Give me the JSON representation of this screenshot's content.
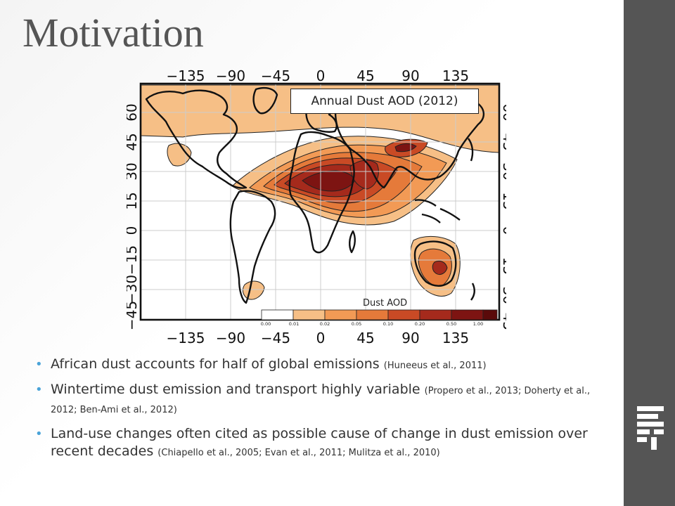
{
  "slide": {
    "title": "Motivation"
  },
  "figure": {
    "map_title": "Annual Dust AOD (2012)",
    "lon_ticks": [
      "−135",
      "−90",
      "−45",
      "0",
      "45",
      "90",
      "135"
    ],
    "lat_ticks": [
      "60",
      "45",
      "30",
      "15",
      "0",
      "−15",
      "−30",
      "−45"
    ],
    "colorbar_title": "Dust AOD",
    "colorbar_ticks": [
      "0.00",
      "0.01",
      "0.02",
      "0.05",
      "0.10",
      "0.20",
      "0.50",
      "1.00"
    ],
    "colors": {
      "level_1": "#ffffff",
      "level_2": "#f6bf86",
      "level_3": "#f29a55",
      "level_4": "#e57a3a",
      "level_5": "#c94a25",
      "level_6": "#a52a1c",
      "level_7": "#7d1412",
      "level_8": "#5a0a0a"
    }
  },
  "bullets": [
    {
      "text": "African dust accounts for half of global emissions",
      "ref": "(Huneeus et al., 2011)"
    },
    {
      "text": "Wintertime dust emission and transport highly variable",
      "ref": "(Propero et al., 2013; Doherty et al., 2012; Ben-Ami et al., 2012)"
    },
    {
      "text": "Land-use changes often cited as possible cause of change in dust emission over recent decades",
      "ref": "(Chiapello et al., 2005; Evan et al., 2011; Mulitza et al., 2010)"
    }
  ],
  "bullet_glyph": "•",
  "sidebar": {
    "logo_icon": "bar-logo-icon"
  }
}
